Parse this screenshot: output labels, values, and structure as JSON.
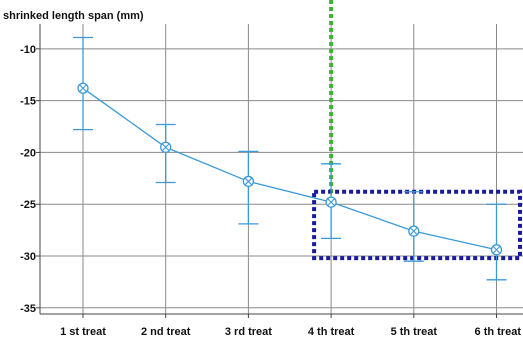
{
  "chart_data": {
    "type": "line",
    "title": "shrinked length span (mm)",
    "xlabel": "",
    "ylabel": "",
    "categories": [
      "1 st treat",
      "2 nd treat",
      "3 rd treat",
      "4 th treat",
      "5 th treat",
      "6 th treat"
    ],
    "series": [
      {
        "values": [
          -13.8,
          -19.5,
          -22.8,
          -24.8,
          -27.6,
          -29.4
        ],
        "error_upper": [
          -8.9,
          -17.3,
          -19.9,
          -21.1,
          -23.8,
          -25.0
        ],
        "error_lower": [
          -17.8,
          -22.9,
          -26.9,
          -28.3,
          -30.5,
          -32.3
        ],
        "color": "#3a9ad9",
        "marker": "circle-x"
      }
    ],
    "ylim": [
      -35.6,
      -7.6
    ],
    "yticks": [
      "-10",
      "-15",
      "-20",
      "-25",
      "-30",
      "-35"
    ],
    "ytick_values": [
      -10,
      -15,
      -20,
      -25,
      -30,
      -35
    ],
    "grid": true,
    "legend": "none",
    "annotations": {
      "green_dotted_vertical_line": {
        "category_index": 3,
        "color": "#3cb531"
      },
      "blue_dotted_box": {
        "from_category_index": 3,
        "y_top": -23.8,
        "y_bottom": -30.2,
        "color": "#1a1a9e"
      }
    }
  }
}
